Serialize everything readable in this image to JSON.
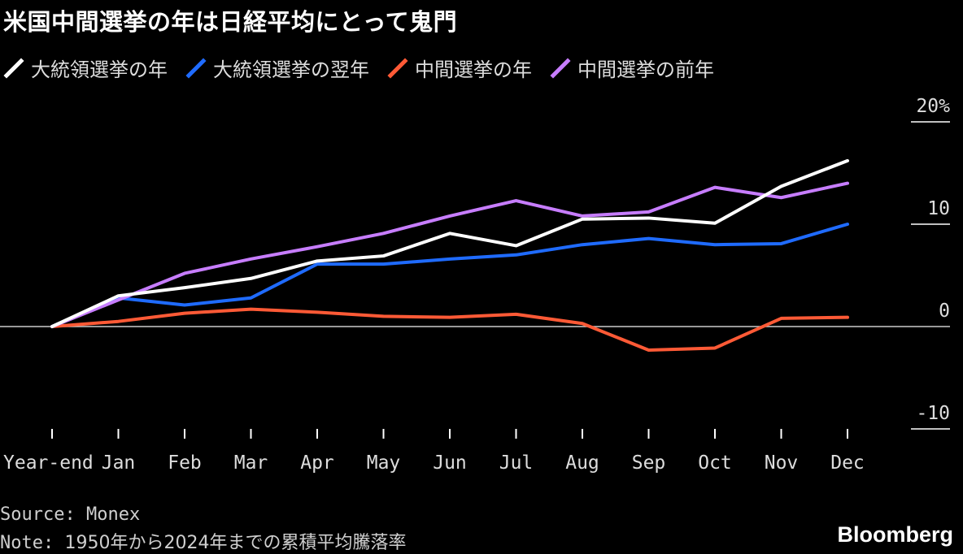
{
  "chart_data": {
    "type": "line",
    "title": "米国中間選挙の年は日経平均にとって鬼門",
    "categories": [
      "Year-end",
      "Jan",
      "Feb",
      "Mar",
      "Apr",
      "May",
      "Jun",
      "Jul",
      "Aug",
      "Sep",
      "Oct",
      "Nov",
      "Dec"
    ],
    "y_ticks": [
      "20%",
      "10",
      "0",
      "-10"
    ],
    "ylim": [
      -10,
      20
    ],
    "grid": false,
    "legend_position": "top-left",
    "series": [
      {
        "name": "大統領選挙の年",
        "color": "#ffffff",
        "values": [
          0,
          3.0,
          3.8,
          4.7,
          6.4,
          6.9,
          9.1,
          7.9,
          10.5,
          10.6,
          10.1,
          13.7,
          16.2
        ]
      },
      {
        "name": "大統領選挙の翌年",
        "color": "#1f6bff",
        "values": [
          0,
          2.8,
          2.1,
          2.8,
          6.1,
          6.1,
          6.6,
          7.0,
          8.0,
          8.6,
          8.0,
          8.1,
          10.0
        ]
      },
      {
        "name": "中間選挙の年",
        "color": "#ff5a36",
        "values": [
          0,
          0.5,
          1.3,
          1.7,
          1.4,
          1.0,
          0.9,
          1.2,
          0.3,
          -2.3,
          -2.1,
          0.8,
          0.9
        ]
      },
      {
        "name": "中間選挙の前年",
        "color": "#c77dff",
        "values": [
          0,
          2.6,
          5.2,
          6.6,
          7.8,
          9.1,
          10.8,
          12.3,
          10.8,
          11.2,
          13.6,
          12.6,
          14.0
        ]
      }
    ]
  },
  "footer": {
    "source": "Source: Monex",
    "note_prefix": "Note: ",
    "note_text": "1950年から2024年までの累積平均騰落率",
    "brand": "Bloomberg"
  }
}
